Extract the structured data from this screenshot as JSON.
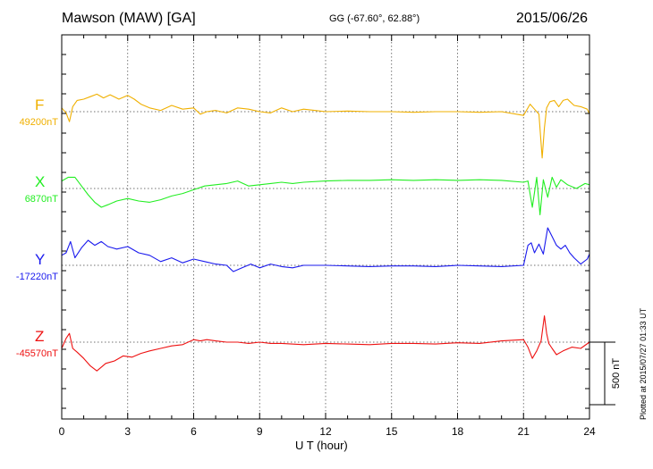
{
  "header": {
    "station": "Mawson (MAW)  [GA]",
    "coords": "GG (-67.60°,  62.88°)",
    "date": "2015/06/26"
  },
  "footer": {
    "plotted": "Plotted at 2015/07/27 01:33 UT"
  },
  "chart_data": {
    "type": "line",
    "title": "Mawson (MAW)  [GA]",
    "xlabel": "U T (hour)",
    "xlim": [
      0,
      24
    ],
    "xticks": [
      0,
      3,
      6,
      9,
      12,
      15,
      18,
      21,
      24
    ],
    "grid": "vertical dotted every 3 hours",
    "scale_bar": {
      "label": "500 nT",
      "value_nT": 500
    },
    "series": [
      {
        "name": "F",
        "baseline_label": "49200nT",
        "baseline_nT": 49200,
        "color": "#f0b000",
        "x": [
          0,
          0.2,
          0.35,
          0.5,
          0.7,
          1.0,
          1.3,
          1.6,
          1.9,
          2.2,
          2.6,
          3.0,
          3.3,
          3.6,
          4.0,
          4.5,
          5.0,
          5.5,
          6.0,
          6.3,
          6.6,
          7.0,
          7.5,
          8.0,
          8.5,
          9.0,
          9.5,
          10.0,
          10.5,
          11.0,
          11.5,
          12.0,
          13.0,
          14.0,
          15.0,
          16.0,
          17.0,
          18.0,
          19.0,
          20.0,
          21.0,
          21.3,
          21.5,
          21.7,
          21.85,
          21.95,
          22.05,
          22.2,
          22.4,
          22.6,
          22.8,
          23.0,
          23.3,
          23.6,
          23.9,
          24.0
        ],
        "y": [
          49230,
          49190,
          49120,
          49240,
          49290,
          49300,
          49320,
          49340,
          49310,
          49335,
          49300,
          49330,
          49300,
          49260,
          49230,
          49210,
          49250,
          49220,
          49230,
          49180,
          49200,
          49210,
          49190,
          49230,
          49220,
          49200,
          49190,
          49230,
          49200,
          49220,
          49210,
          49200,
          49205,
          49200,
          49200,
          49195,
          49200,
          49200,
          49195,
          49200,
          49170,
          49260,
          49220,
          49180,
          48830,
          49070,
          49230,
          49280,
          49290,
          49240,
          49290,
          49300,
          49250,
          49240,
          49220,
          49180
        ]
      },
      {
        "name": "X",
        "baseline_label": "6870nT",
        "baseline_nT": 6870,
        "color": "#22ee22",
        "x": [
          0,
          0.3,
          0.6,
          0.9,
          1.2,
          1.5,
          1.8,
          2.1,
          2.5,
          3.0,
          3.5,
          4.0,
          4.5,
          5.0,
          5.5,
          6.0,
          6.5,
          7.0,
          7.5,
          8.0,
          8.5,
          9.0,
          9.5,
          10.0,
          10.5,
          11.0,
          12.0,
          13.0,
          14.0,
          15.0,
          16.0,
          17.0,
          18.0,
          19.0,
          20.0,
          21.0,
          21.2,
          21.4,
          21.6,
          21.75,
          21.9,
          22.1,
          22.3,
          22.5,
          22.7,
          23.0,
          23.4,
          23.8,
          24.0
        ],
        "y": [
          6930,
          6960,
          6960,
          6890,
          6820,
          6760,
          6720,
          6740,
          6770,
          6790,
          6770,
          6760,
          6780,
          6810,
          6830,
          6860,
          6890,
          6900,
          6910,
          6930,
          6890,
          6900,
          6910,
          6920,
          6910,
          6920,
          6930,
          6935,
          6935,
          6940,
          6935,
          6940,
          6935,
          6940,
          6935,
          6920,
          6930,
          6720,
          6960,
          6660,
          6940,
          6800,
          6960,
          6880,
          6940,
          6900,
          6870,
          6910,
          6900
        ]
      },
      {
        "name": "Y",
        "baseline_label": "-17220nT",
        "baseline_nT": -17220,
        "color": "#1a1aee",
        "x": [
          0,
          0.2,
          0.4,
          0.6,
          0.9,
          1.2,
          1.5,
          1.8,
          2.1,
          2.5,
          3.0,
          3.5,
          4.0,
          4.5,
          5.0,
          5.5,
          6.0,
          6.5,
          7.0,
          7.5,
          7.8,
          8.2,
          8.6,
          9.0,
          9.5,
          10.0,
          10.5,
          11.0,
          12.0,
          13.0,
          14.0,
          15.0,
          16.0,
          17.0,
          18.0,
          19.0,
          20.0,
          21.0,
          21.2,
          21.35,
          21.5,
          21.7,
          21.9,
          22.1,
          22.3,
          22.5,
          22.7,
          22.9,
          23.1,
          23.3,
          23.6,
          23.9,
          24.0
        ],
        "y": [
          -17140,
          -17120,
          -17030,
          -17160,
          -17080,
          -17020,
          -17060,
          -17030,
          -17070,
          -17090,
          -17070,
          -17120,
          -17140,
          -17190,
          -17160,
          -17200,
          -17170,
          -17190,
          -17210,
          -17220,
          -17270,
          -17240,
          -17210,
          -17240,
          -17210,
          -17230,
          -17240,
          -17220,
          -17220,
          -17225,
          -17230,
          -17225,
          -17225,
          -17230,
          -17220,
          -17225,
          -17230,
          -17220,
          -17060,
          -17040,
          -17120,
          -17050,
          -17130,
          -16920,
          -16990,
          -17060,
          -17090,
          -17060,
          -17120,
          -17160,
          -17210,
          -17170,
          -17130
        ]
      },
      {
        "name": "Z",
        "baseline_label": "-45570nT",
        "baseline_nT": -45570,
        "color": "#ee1111",
        "x": [
          0,
          0.2,
          0.35,
          0.5,
          0.7,
          1.0,
          1.3,
          1.6,
          2.0,
          2.4,
          2.8,
          3.2,
          3.6,
          4.0,
          4.5,
          5.0,
          5.5,
          6.0,
          6.3,
          6.6,
          7.0,
          7.5,
          8.0,
          8.5,
          9.0,
          9.5,
          10.0,
          11.0,
          12.0,
          13.0,
          14.0,
          15.0,
          16.0,
          17.0,
          18.0,
          19.0,
          20.0,
          21.0,
          21.2,
          21.4,
          21.6,
          21.8,
          21.95,
          22.05,
          22.15,
          22.3,
          22.5,
          22.8,
          23.2,
          23.6,
          24.0
        ],
        "y": [
          -45620,
          -45540,
          -45500,
          -45620,
          -45650,
          -45700,
          -45760,
          -45800,
          -45740,
          -45720,
          -45680,
          -45690,
          -45660,
          -45640,
          -45620,
          -45600,
          -45590,
          -45550,
          -45560,
          -45550,
          -45560,
          -45570,
          -45570,
          -45580,
          -45570,
          -45580,
          -45580,
          -45590,
          -45580,
          -45585,
          -45590,
          -45580,
          -45580,
          -45585,
          -45575,
          -45580,
          -45560,
          -45550,
          -45610,
          -45700,
          -45640,
          -45560,
          -45360,
          -45500,
          -45580,
          -45620,
          -45670,
          -45640,
          -45610,
          -45620,
          -45570
        ]
      }
    ]
  }
}
